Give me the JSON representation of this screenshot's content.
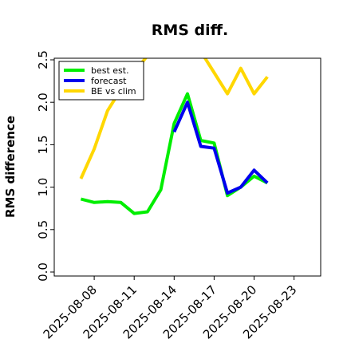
{
  "chart_data": {
    "type": "line",
    "title": "RMS diff.",
    "xlabel": "",
    "ylabel": "RMS difference",
    "ylim": [
      0,
      2.5
    ],
    "xlim": [
      "2025-08-05",
      "2025-08-25"
    ],
    "grid": false,
    "legend_placement": "top-left",
    "x_ticks": [
      "2025-08-08",
      "2025-08-11",
      "2025-08-14",
      "2025-08-17",
      "2025-08-20",
      "2025-08-23"
    ],
    "x_tick_colors": [
      "#000000",
      "#000000",
      "#228b22",
      "#000000",
      "#000000",
      "#000000"
    ],
    "y_ticks": [
      "0.0",
      "0.5",
      "1.0",
      "1.5",
      "2.0",
      "2.5"
    ],
    "y_tick_values": [
      0,
      0.5,
      1.0,
      1.5,
      2.0,
      2.5
    ],
    "series": [
      {
        "name": "best est.",
        "color": "#00ee00",
        "x": [
          "2025-08-07",
          "2025-08-08",
          "2025-08-09",
          "2025-08-10",
          "2025-08-11",
          "2025-08-12",
          "2025-08-13",
          "2025-08-14",
          "2025-08-15",
          "2025-08-16",
          "2025-08-17",
          "2025-08-18",
          "2025-08-19",
          "2025-08-20",
          "2025-08-21"
        ],
        "values": [
          0.86,
          0.82,
          0.83,
          0.82,
          0.69,
          0.71,
          0.97,
          1.75,
          2.1,
          1.55,
          1.52,
          0.9,
          1.0,
          1.13,
          1.05
        ]
      },
      {
        "name": "forecast",
        "color": "#0000ee",
        "x": [
          "2025-08-14",
          "2025-08-15",
          "2025-08-16",
          "2025-08-17",
          "2025-08-18",
          "2025-08-19",
          "2025-08-20",
          "2025-08-21"
        ],
        "values": [
          1.65,
          2.0,
          1.48,
          1.46,
          0.93,
          1.0,
          1.2,
          1.05
        ]
      },
      {
        "name": "BE vs clim",
        "color": "#ffd700",
        "x": [
          "2025-08-07",
          "2025-08-08",
          "2025-08-09",
          "2025-08-10",
          "2025-08-11",
          "2025-08-12",
          "2025-08-13",
          "2025-08-14",
          "2025-08-15",
          "2025-08-16",
          "2025-08-17",
          "2025-08-18",
          "2025-08-19",
          "2025-08-20",
          "2025-08-21"
        ],
        "values": [
          1.1,
          1.45,
          1.9,
          2.15,
          2.35,
          2.55,
          2.7,
          2.85,
          2.8,
          2.6,
          2.35,
          2.1,
          2.4,
          2.1,
          2.3
        ]
      }
    ]
  }
}
